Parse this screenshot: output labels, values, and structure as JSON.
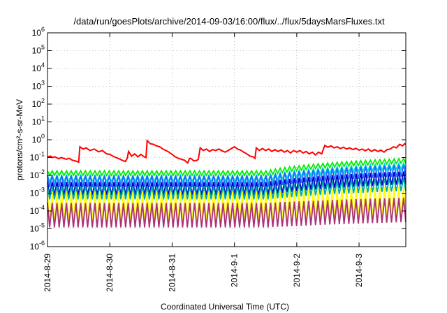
{
  "chart_data": {
    "type": "line",
    "title": "/data/run/goesPlots/archive/2014-09-03/16:00/flux/../flux/5daysMarsFluxes.txt",
    "xlabel": "Coordinated Universal Time (UTC)",
    "ylabel": "protons/cm²-s-sr-MeV",
    "y_scale": "log",
    "ylim": [
      1e-06,
      1000000.0
    ],
    "xlim": [
      0,
      5.75
    ],
    "x_tick_labels": [
      "2014-8-29",
      "2014-8-30",
      "2014-8-31",
      "2014-9-1",
      "2014-9-2",
      "2014-9-3"
    ],
    "y_tick_labels": [
      {
        "base": "10",
        "exp": "-6"
      },
      {
        "base": "10",
        "exp": "-5"
      },
      {
        "base": "10",
        "exp": "-4"
      },
      {
        "base": "10",
        "exp": "-3"
      },
      {
        "base": "10",
        "exp": "-2"
      },
      {
        "base": "10",
        "exp": "-1"
      },
      {
        "base": "10",
        "exp": "0"
      },
      {
        "base": "10",
        "exp": "1"
      },
      {
        "base": "10",
        "exp": "2"
      },
      {
        "base": "10",
        "exp": "3"
      },
      {
        "base": "10",
        "exp": "4"
      },
      {
        "base": "10",
        "exp": "5"
      },
      {
        "base": "10",
        "exp": "6"
      }
    ],
    "grid": true,
    "series": [
      {
        "color": "#ff0000",
        "points": [
          [
            0.0,
            0.11
          ],
          [
            0.05,
            0.12
          ],
          [
            0.08,
            0.1
          ],
          [
            0.12,
            0.11
          ],
          [
            0.18,
            0.085
          ],
          [
            0.22,
            0.1
          ],
          [
            0.3,
            0.08
          ],
          [
            0.35,
            0.09
          ],
          [
            0.4,
            0.07
          ],
          [
            0.45,
            0.065
          ],
          [
            0.5,
            0.055
          ],
          [
            0.52,
            0.4
          ],
          [
            0.57,
            0.3
          ],
          [
            0.62,
            0.35
          ],
          [
            0.68,
            0.25
          ],
          [
            0.75,
            0.3
          ],
          [
            0.82,
            0.21
          ],
          [
            0.88,
            0.25
          ],
          [
            0.95,
            0.16
          ],
          [
            1.0,
            0.15
          ],
          [
            1.05,
            0.12
          ],
          [
            1.1,
            0.1
          ],
          [
            1.15,
            0.085
          ],
          [
            1.2,
            0.07
          ],
          [
            1.25,
            0.06
          ],
          [
            1.28,
            0.09
          ],
          [
            1.3,
            0.22
          ],
          [
            1.35,
            0.12
          ],
          [
            1.4,
            0.16
          ],
          [
            1.45,
            0.11
          ],
          [
            1.5,
            0.15
          ],
          [
            1.55,
            0.11
          ],
          [
            1.58,
            0.1
          ],
          [
            1.6,
            0.9
          ],
          [
            1.65,
            0.6
          ],
          [
            1.7,
            0.55
          ],
          [
            1.75,
            0.45
          ],
          [
            1.8,
            0.4
          ],
          [
            1.85,
            0.3
          ],
          [
            1.9,
            0.25
          ],
          [
            1.95,
            0.2
          ],
          [
            2.0,
            0.15
          ],
          [
            2.05,
            0.11
          ],
          [
            2.1,
            0.09
          ],
          [
            2.15,
            0.08
          ],
          [
            2.2,
            0.07
          ],
          [
            2.25,
            0.05
          ],
          [
            2.28,
            0.09
          ],
          [
            2.3,
            0.09
          ],
          [
            2.35,
            0.065
          ],
          [
            2.4,
            0.07
          ],
          [
            2.42,
            0.08
          ],
          [
            2.45,
            0.35
          ],
          [
            2.5,
            0.25
          ],
          [
            2.55,
            0.3
          ],
          [
            2.6,
            0.22
          ],
          [
            2.65,
            0.28
          ],
          [
            2.7,
            0.25
          ],
          [
            2.75,
            0.3
          ],
          [
            2.8,
            0.24
          ],
          [
            2.85,
            0.2
          ],
          [
            2.9,
            0.25
          ],
          [
            2.95,
            0.32
          ],
          [
            3.0,
            0.4
          ],
          [
            3.05,
            0.3
          ],
          [
            3.1,
            0.26
          ],
          [
            3.15,
            0.2
          ],
          [
            3.2,
            0.16
          ],
          [
            3.25,
            0.12
          ],
          [
            3.3,
            0.11
          ],
          [
            3.33,
            0.09
          ],
          [
            3.35,
            0.35
          ],
          [
            3.4,
            0.25
          ],
          [
            3.45,
            0.32
          ],
          [
            3.5,
            0.25
          ],
          [
            3.55,
            0.3
          ],
          [
            3.6,
            0.22
          ],
          [
            3.65,
            0.28
          ],
          [
            3.7,
            0.22
          ],
          [
            3.75,
            0.27
          ],
          [
            3.8,
            0.2
          ],
          [
            3.85,
            0.25
          ],
          [
            3.9,
            0.18
          ],
          [
            3.95,
            0.25
          ],
          [
            4.0,
            0.2
          ],
          [
            4.05,
            0.25
          ],
          [
            4.1,
            0.18
          ],
          [
            4.15,
            0.22
          ],
          [
            4.2,
            0.16
          ],
          [
            4.25,
            0.2
          ],
          [
            4.3,
            0.14
          ],
          [
            4.35,
            0.2
          ],
          [
            4.4,
            0.16
          ],
          [
            4.45,
            0.48
          ],
          [
            4.5,
            0.38
          ],
          [
            4.55,
            0.45
          ],
          [
            4.6,
            0.35
          ],
          [
            4.65,
            0.4
          ],
          [
            4.7,
            0.32
          ],
          [
            4.75,
            0.38
          ],
          [
            4.8,
            0.3
          ],
          [
            4.85,
            0.35
          ],
          [
            4.9,
            0.28
          ],
          [
            4.95,
            0.33
          ],
          [
            5.0,
            0.26
          ],
          [
            5.05,
            0.3
          ],
          [
            5.1,
            0.24
          ],
          [
            5.15,
            0.3
          ],
          [
            5.2,
            0.22
          ],
          [
            5.25,
            0.28
          ],
          [
            5.3,
            0.22
          ],
          [
            5.35,
            0.26
          ],
          [
            5.4,
            0.2
          ],
          [
            5.45,
            0.28
          ],
          [
            5.5,
            0.3
          ],
          [
            5.55,
            0.4
          ],
          [
            5.6,
            0.35
          ],
          [
            5.65,
            0.55
          ],
          [
            5.7,
            0.45
          ],
          [
            5.73,
            0.6
          ],
          [
            5.75,
            0.55
          ]
        ]
      },
      {
        "color": "#00ee00",
        "period": 0.0762,
        "base": 0.018,
        "drop": 0.01,
        "trend": [
          [
            0,
            1
          ],
          [
            3.5,
            1
          ],
          [
            5.75,
            5
          ]
        ]
      },
      {
        "color": "#00dddd",
        "period": 0.0762,
        "base": 0.01,
        "drop": 0.0045,
        "trend": [
          [
            0,
            1
          ],
          [
            3.5,
            1
          ],
          [
            5.75,
            5
          ]
        ]
      },
      {
        "color": "#1e6cff",
        "period": 0.0762,
        "base": 0.01,
        "drop": 0.0022,
        "trend": [
          [
            0,
            1
          ],
          [
            3.5,
            1
          ],
          [
            5.75,
            4
          ]
        ]
      },
      {
        "color": "#0000cc",
        "period": 0.0762,
        "base": 0.0042,
        "drop": 0.0008,
        "trend": [
          [
            0,
            1
          ],
          [
            3.5,
            1
          ],
          [
            5.75,
            4
          ]
        ]
      },
      {
        "color": "#00aaaa",
        "period": 0.0762,
        "base": 0.0025,
        "drop": 0.00045,
        "trend": [
          [
            0,
            1
          ],
          [
            3.5,
            1
          ],
          [
            5.75,
            3
          ]
        ]
      },
      {
        "color": "#ffff00",
        "period": 0.0762,
        "base": 0.0012,
        "drop": 2e-05,
        "trend": [
          [
            0,
            1
          ],
          [
            3.5,
            1
          ],
          [
            5.75,
            2
          ]
        ]
      },
      {
        "color": "#aa3377",
        "period": 0.0762,
        "base": 0.00028,
        "drop": 1.2e-05,
        "trend": [
          [
            0,
            1
          ],
          [
            3.5,
            1
          ],
          [
            5.75,
            2
          ]
        ]
      }
    ]
  }
}
